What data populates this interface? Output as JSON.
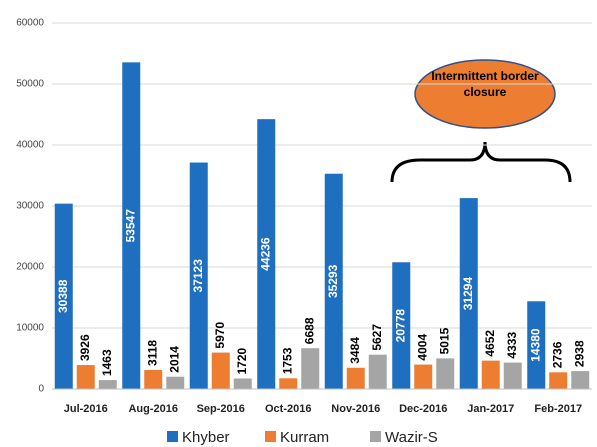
{
  "chart_data": {
    "type": "bar",
    "categories": [
      "Jul-2016",
      "Aug-2016",
      "Sep-2016",
      "Oct-2016",
      "Nov-2016",
      "Dec-2016",
      "Jan-2017",
      "Feb-2017"
    ],
    "series": [
      {
        "name": "Khyber",
        "color": "#1f6fc0",
        "values": [
          30388,
          53547,
          37123,
          44236,
          35293,
          20778,
          31294,
          14380
        ]
      },
      {
        "name": "Kurram",
        "color": "#ed7d31",
        "values": [
          3926,
          3118,
          5970,
          1753,
          3484,
          4004,
          4652,
          2736
        ]
      },
      {
        "name": "Wazir-S",
        "color": "#a5a5a5",
        "values": [
          1463,
          2014,
          1720,
          6688,
          5627,
          5015,
          4333,
          2938
        ]
      }
    ],
    "ylim": [
      0,
      60000
    ],
    "yticks": [
      0,
      10000,
      20000,
      30000,
      40000,
      50000,
      60000
    ],
    "grid": true,
    "annotation": "Intermittent border closure"
  }
}
